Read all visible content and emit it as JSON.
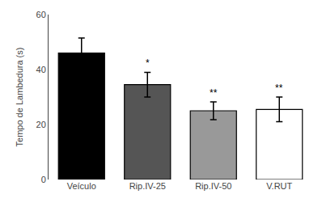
{
  "chart_data": {
    "type": "bar",
    "categories": [
      "Veículo",
      "Rip.IV-25",
      "Rip.IV-50",
      "V.RUT"
    ],
    "values": [
      46.0,
      34.5,
      25.0,
      25.5
    ],
    "errors": [
      5.5,
      4.5,
      3.2,
      4.5
    ],
    "colors": [
      "#000000",
      "#555555",
      "#999999",
      "#ffffff"
    ],
    "annotations": [
      null,
      "*",
      "**",
      "**"
    ],
    "ylabel": "Tempo de Lambedura (s)",
    "ylim": [
      0,
      60
    ],
    "yticks": [
      0,
      20,
      40,
      60
    ],
    "grid": false
  }
}
